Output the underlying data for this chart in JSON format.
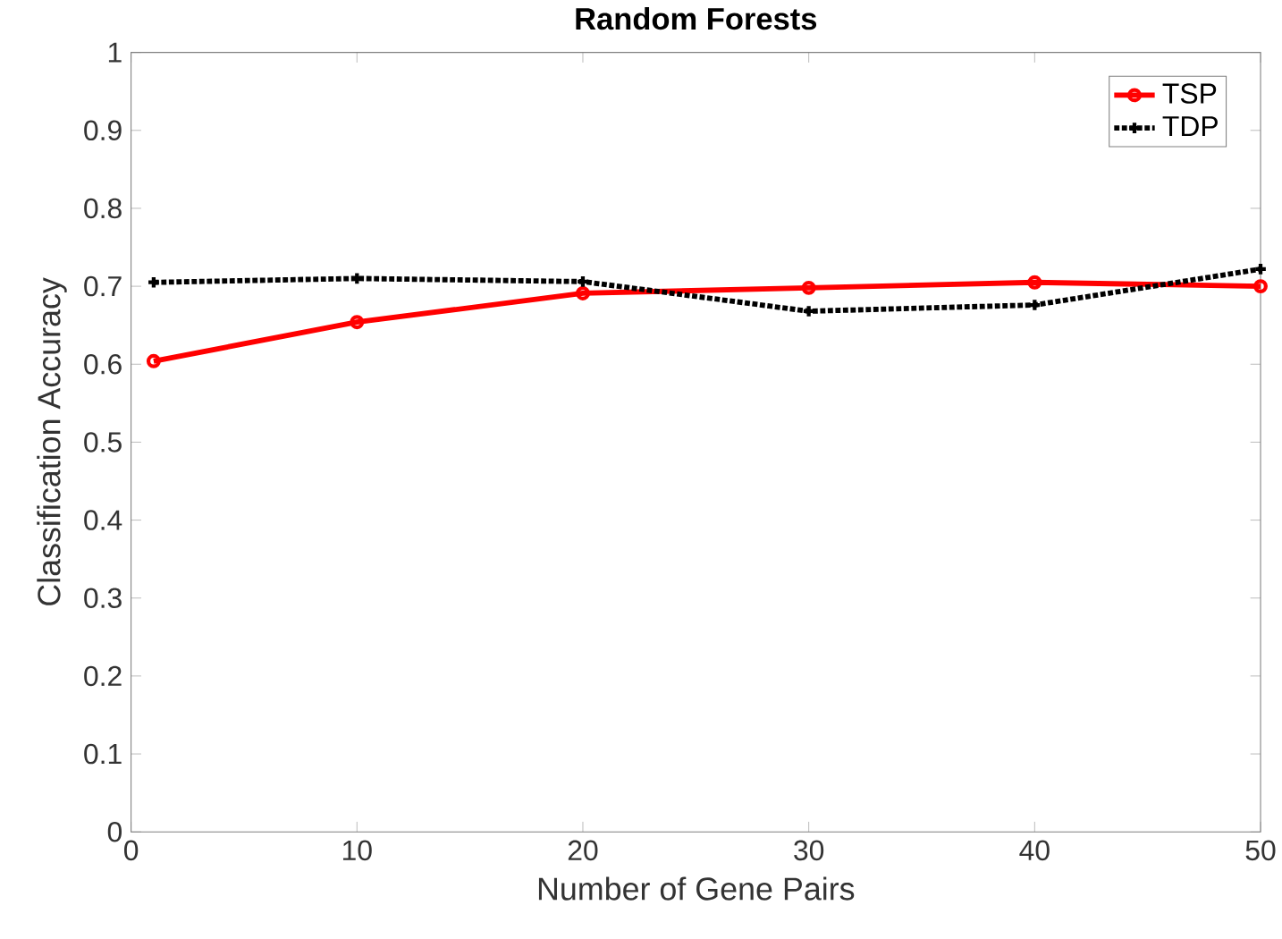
{
  "chart_data": {
    "type": "line",
    "title": "Random Forests",
    "xlabel": "Number of Gene Pairs",
    "ylabel": "Classification Accuracy",
    "x": [
      1,
      10,
      20,
      30,
      40,
      50
    ],
    "series": [
      {
        "name": "TSP",
        "color": "#ff0000",
        "marker": "circle",
        "line_style": "solid",
        "values": [
          0.604,
          0.654,
          0.691,
          0.698,
          0.705,
          0.7
        ]
      },
      {
        "name": "TDP",
        "color": "#000000",
        "marker": "cross",
        "line_style": "dotted",
        "values": [
          0.705,
          0.71,
          0.706,
          0.668,
          0.676,
          0.722
        ]
      }
    ],
    "xlim": [
      0,
      50
    ],
    "ylim": [
      0,
      1
    ],
    "xticks": [
      0,
      10,
      20,
      30,
      40,
      50
    ],
    "yticks": [
      0,
      0.1,
      0.2,
      0.3,
      0.4,
      0.5,
      0.6,
      0.7,
      0.8,
      0.9,
      1
    ],
    "grid": false,
    "legend": "top right"
  }
}
